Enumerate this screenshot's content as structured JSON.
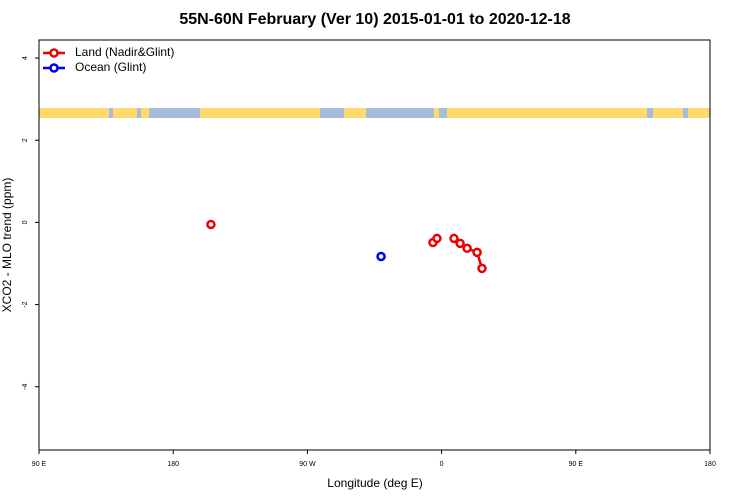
{
  "chart_data": {
    "type": "line",
    "title": "55N-60N February (Ver 10)   2015-01-01 to 2020-12-18",
    "xlabel": "Longitude (deg E)",
    "ylabel": "XCO2 - MLO trend (ppm)",
    "xlim": [
      90,
      540
    ],
    "ylim": [
      -5.54,
      4.44
    ],
    "xticks": [
      {
        "value": 90,
        "label": "90 E"
      },
      {
        "value": 180,
        "label": "180"
      },
      {
        "value": 270,
        "label": "90 W"
      },
      {
        "value": 360,
        "label": "0"
      },
      {
        "value": 450,
        "label": "90 E"
      },
      {
        "value": 540,
        "label": "180"
      }
    ],
    "yticks": [
      4,
      2,
      0,
      -2,
      -4
    ],
    "legend": "top-left",
    "series": [
      {
        "name": "Land (Nadir&Glint)",
        "color": "#ee0000",
        "x": [
          205.3,
          null,
          354.2,
          356.9,
          null,
          368.3,
          372.4,
          377.1,
          383.8,
          387.1
        ],
        "values": [
          -0.05,
          null,
          -0.49,
          -0.39,
          null,
          -0.39,
          -0.51,
          -0.63,
          -0.73,
          -1.12
        ]
      },
      {
        "name": "Ocean (Glint)",
        "color": "#0000ee",
        "x": [
          319.4
        ],
        "values": [
          -0.83
        ]
      }
    ]
  }
}
